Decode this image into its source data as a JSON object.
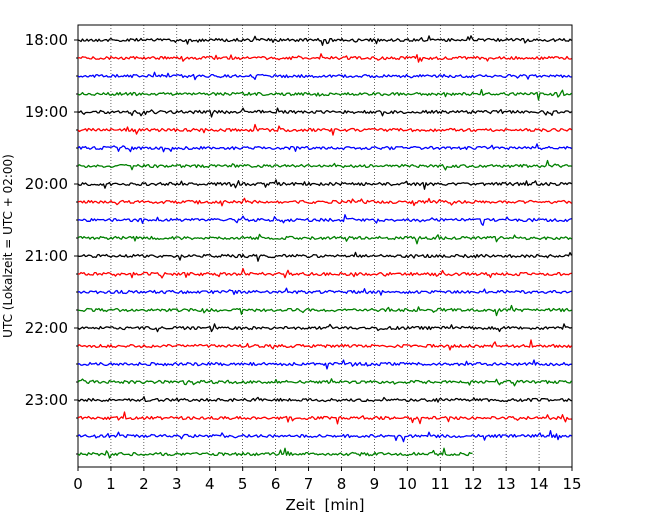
{
  "chart_data": {
    "type": "line",
    "title": "",
    "xlabel": "Zeit  [min]",
    "ylabel": "UTC (Lokalzeit = UTC + 02:00)",
    "xlim": [
      0,
      15
    ],
    "x_ticks": [
      "0",
      "1",
      "2",
      "3",
      "4",
      "5",
      "6",
      "7",
      "8",
      "9",
      "10",
      "11",
      "12",
      "13",
      "14",
      "15"
    ],
    "y_tick_labels": [
      "18:00",
      "19:00",
      "20:00",
      "21:00",
      "22:00",
      "23:00"
    ],
    "grid": "vertical dotted lines at each minute",
    "colors": [
      "#000000",
      "#ff0000",
      "#0000ff",
      "#008000"
    ],
    "traces": [
      {
        "start": "18:00",
        "end_min": 15
      },
      {
        "start": "18:15",
        "end_min": 15
      },
      {
        "start": "18:30",
        "end_min": 15
      },
      {
        "start": "18:45",
        "end_min": 15
      },
      {
        "start": "19:00",
        "end_min": 15
      },
      {
        "start": "19:15",
        "end_min": 15
      },
      {
        "start": "19:30",
        "end_min": 15
      },
      {
        "start": "19:45",
        "end_min": 15
      },
      {
        "start": "20:00",
        "end_min": 15
      },
      {
        "start": "20:15",
        "end_min": 15
      },
      {
        "start": "20:30",
        "end_min": 15
      },
      {
        "start": "20:45",
        "end_min": 15
      },
      {
        "start": "21:00",
        "end_min": 15
      },
      {
        "start": "21:15",
        "end_min": 15
      },
      {
        "start": "21:30",
        "end_min": 15
      },
      {
        "start": "21:45",
        "end_min": 15
      },
      {
        "start": "22:00",
        "end_min": 15
      },
      {
        "start": "22:15",
        "end_min": 15
      },
      {
        "start": "22:30",
        "end_min": 15
      },
      {
        "start": "22:45",
        "end_min": 15
      },
      {
        "start": "23:00",
        "end_min": 15
      },
      {
        "start": "23:15",
        "end_min": 15
      },
      {
        "start": "23:30",
        "end_min": 15
      },
      {
        "start": "23:45",
        "end_min": 12
      }
    ]
  }
}
